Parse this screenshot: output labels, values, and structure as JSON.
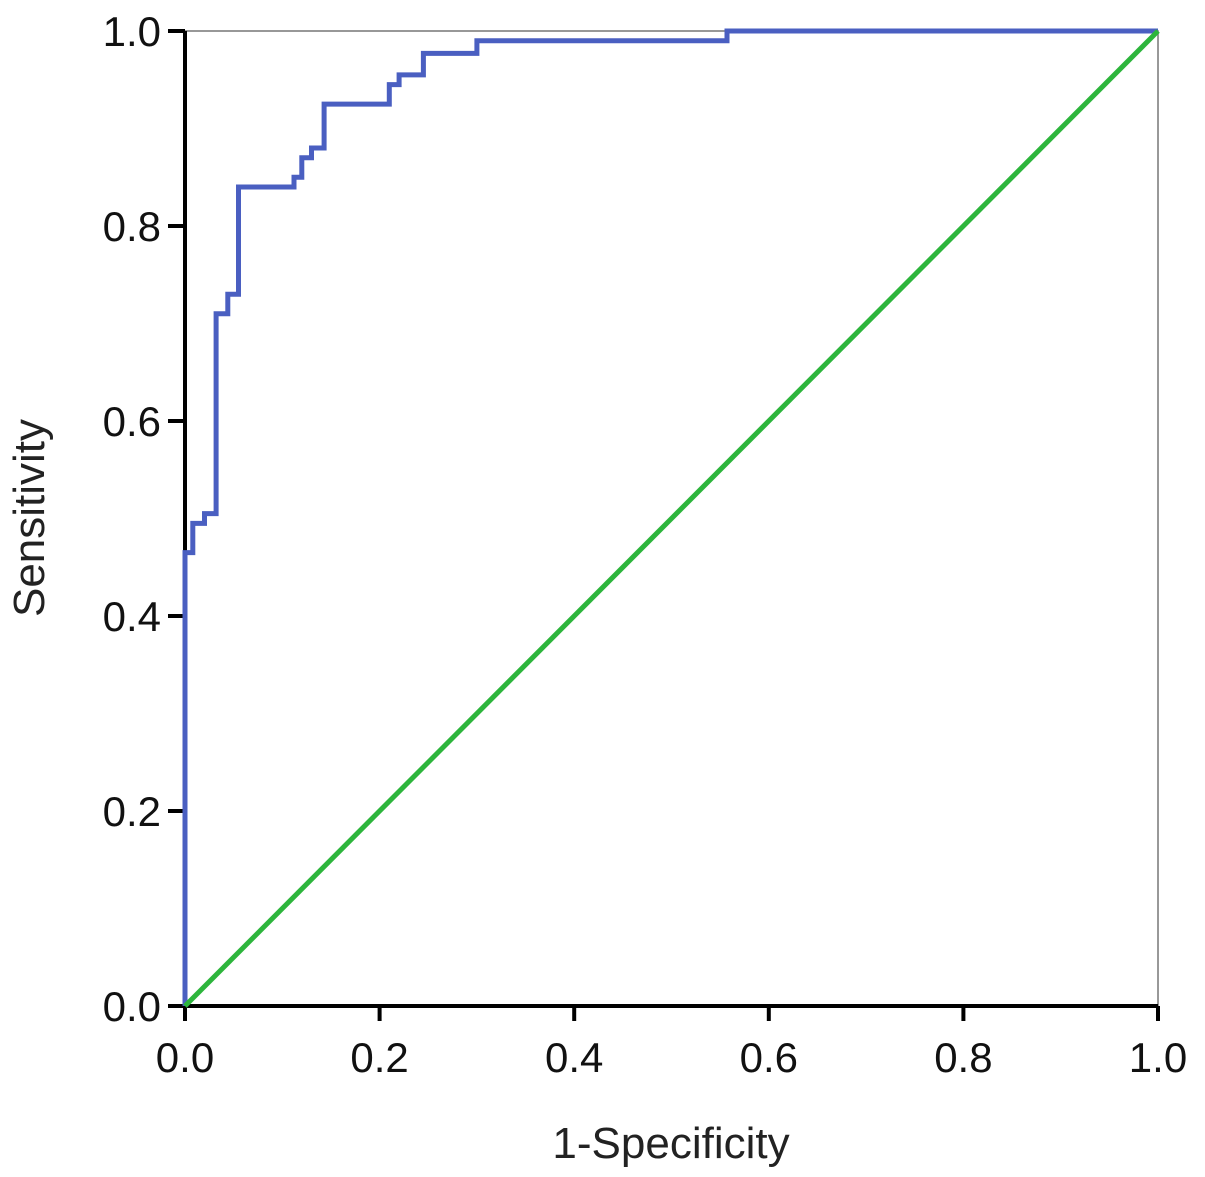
{
  "chart_data": {
    "type": "line",
    "title": "",
    "xlabel": "1-Specificity",
    "ylabel": "Sensitivity",
    "xlim": [
      0,
      1
    ],
    "ylim": [
      0,
      1
    ],
    "grid": false,
    "x_ticks": [
      "0.0",
      "0.2",
      "0.4",
      "0.6",
      "0.8",
      "1.0"
    ],
    "y_ticks": [
      "0.0",
      "0.2",
      "0.4",
      "0.6",
      "0.8",
      "1.0"
    ],
    "series": [
      {
        "color": "#4a5fc1",
        "style": "step",
        "points": [
          [
            0.0,
            0.0
          ],
          [
            0.0,
            0.465
          ],
          [
            0.008,
            0.465
          ],
          [
            0.008,
            0.495
          ],
          [
            0.02,
            0.495
          ],
          [
            0.02,
            0.505
          ],
          [
            0.032,
            0.505
          ],
          [
            0.032,
            0.71
          ],
          [
            0.044,
            0.71
          ],
          [
            0.044,
            0.73
          ],
          [
            0.055,
            0.73
          ],
          [
            0.055,
            0.84
          ],
          [
            0.112,
            0.84
          ],
          [
            0.112,
            0.85
          ],
          [
            0.12,
            0.85
          ],
          [
            0.12,
            0.87
          ],
          [
            0.13,
            0.87
          ],
          [
            0.13,
            0.88
          ],
          [
            0.143,
            0.88
          ],
          [
            0.143,
            0.925
          ],
          [
            0.21,
            0.925
          ],
          [
            0.21,
            0.945
          ],
          [
            0.22,
            0.945
          ],
          [
            0.22,
            0.955
          ],
          [
            0.245,
            0.955
          ],
          [
            0.245,
            0.977
          ],
          [
            0.3,
            0.977
          ],
          [
            0.3,
            0.99
          ],
          [
            0.557,
            0.99
          ],
          [
            0.557,
            1.0
          ],
          [
            1.0,
            1.0
          ]
        ]
      },
      {
        "color": "#2db53c",
        "style": "reference",
        "points": [
          [
            0.0,
            0.0
          ],
          [
            1.0,
            1.0
          ]
        ]
      }
    ]
  }
}
